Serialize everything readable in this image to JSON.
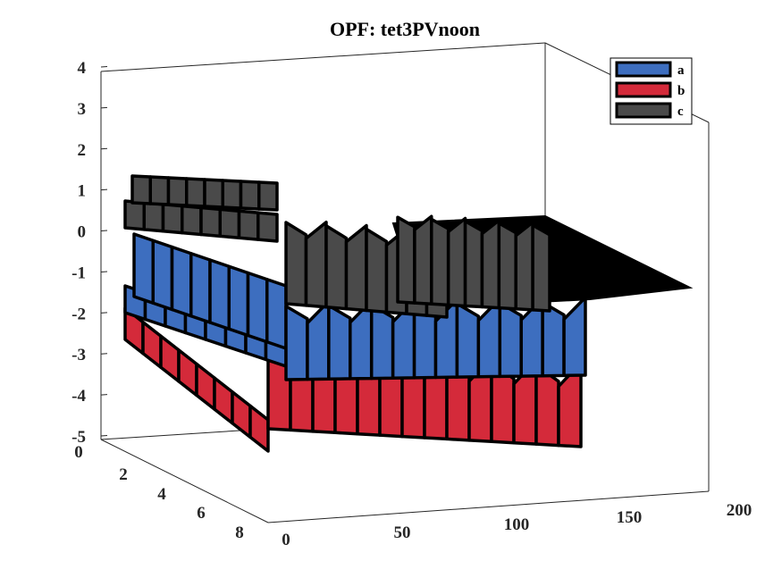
{
  "chart_data": {
    "type": "area",
    "title": "OPF: tet3PVnoon",
    "xlabel": "",
    "ylabel": "",
    "zlabel": "",
    "x_axis_ticks": [
      "0",
      "50",
      "100",
      "150",
      "200"
    ],
    "x_range": [
      0,
      200
    ],
    "y_axis_ticks": [
      "0",
      "2",
      "4",
      "6",
      "8"
    ],
    "y_range": [
      0,
      8
    ],
    "z_axis_ticks": [
      "4",
      "3",
      "2",
      "1",
      "0",
      "-1",
      "-2",
      "-3",
      "-4",
      "-5"
    ],
    "z_range": [
      -5,
      4
    ],
    "grid": false,
    "legend_position": "top-right",
    "series": [
      {
        "name": "a",
        "color": "#3d6ebf",
        "z_level": -1.0
      },
      {
        "name": "b",
        "color": "#d42a3a",
        "z_level": -2.8
      },
      {
        "name": "c",
        "color": "#4a4a4a",
        "z_level": 0.8
      }
    ]
  }
}
